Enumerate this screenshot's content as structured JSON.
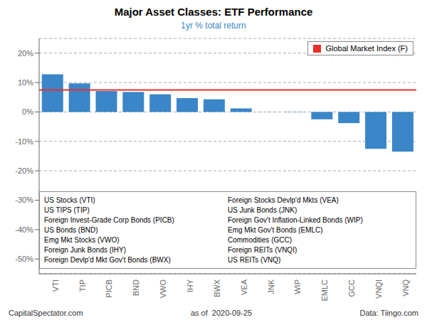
{
  "chart_data": {
    "type": "bar",
    "title": "Major Asset Classes: ETF Performance",
    "subtitle": "1yr % total return",
    "categories": [
      "VTI",
      "TIP",
      "PICB",
      "BND",
      "VWO",
      "IHY",
      "BWX",
      "VEA",
      "JNK",
      "WIP",
      "EMLC",
      "GCC",
      "VNQI",
      "VNQ"
    ],
    "values": [
      12.8,
      9.7,
      7.1,
      6.8,
      6.0,
      4.7,
      4.3,
      1.2,
      -0.05,
      -0.1,
      -2.5,
      -3.8,
      -12.5,
      -13.5
    ],
    "color": "#3a86c8",
    "ylim": [
      -55,
      25
    ],
    "yticks": [
      {
        "value": -50,
        "label": "-50%"
      },
      {
        "value": -40,
        "label": "-40%"
      },
      {
        "value": -30,
        "label": "-30%"
      },
      {
        "value": -20,
        "label": "-20%"
      },
      {
        "value": -10,
        "label": "-10%"
      },
      {
        "value": 0,
        "label": "0%"
      },
      {
        "value": 10,
        "label": "10%"
      },
      {
        "value": 20,
        "label": "20%"
      }
    ],
    "grid": true,
    "legend": "upper right",
    "reference_line": {
      "value": 7.5,
      "label": "Global Market Index (F)",
      "color": "#e8302a"
    },
    "annotations": [
      "US Stocks (VTI)",
      "US TIPS (TIP)",
      "Foreign Invest-Grade Corp Bonds (PICB)",
      "US Bonds (BND)",
      "Emg Mkt Stocks (VWO)",
      "Foreign Junk Bonds (IHY)",
      "Foreign Devlp'd Mkt Gov't Bonds (BWX)",
      "Foreign Stocks Devlp'd Mkts (VEA)",
      "US Junk Bonds (JNK)",
      "Foreign Gov't Inflation-Linked Bonds (WIP)",
      "Emg Mkt Gov't Bonds (EMLC)",
      "Commodities (GCC)",
      "Foreign REITs (VNQI)",
      "US REITs (VNQ)"
    ],
    "footer": [
      "CapitalSpectator.com",
      "as of  2020-09-25",
      "Data: Tiingo.com"
    ]
  }
}
